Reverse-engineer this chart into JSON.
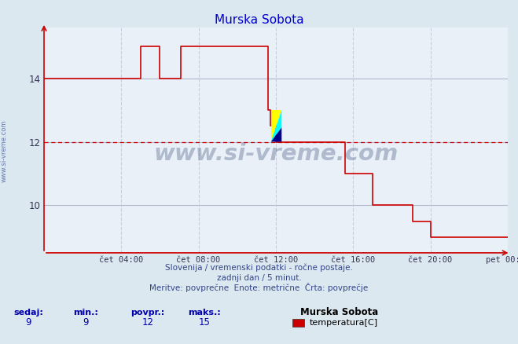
{
  "title": "Murska Sobota",
  "bg_color": "#dce8f0",
  "plot_bg_color": "#eaf0f8",
  "line_color": "#cc0000",
  "grid_color_h": "#b0b8cc",
  "grid_color_v": "#c8cce0",
  "avg_line_color": "#cc0000",
  "avg_value": 12,
  "xlabel_ticks": [
    "čet 04:00",
    "čet 08:00",
    "čet 12:00",
    "čet 16:00",
    "čet 20:00",
    "pet 00:00"
  ],
  "xlabel_tick_positions": [
    4,
    8,
    12,
    16,
    20,
    24
  ],
  "ylim": [
    8.5,
    15.6
  ],
  "xlim": [
    0,
    24
  ],
  "yticks": [
    10,
    12,
    14
  ],
  "footer_line1": "Slovenija / vremenski podatki - ročne postaje.",
  "footer_line2": "zadnji dan / 5 minut.",
  "footer_line3": "Meritve: povprečne  Enote: metrične  Črta: povprečje",
  "legend_labels": [
    "sedaj:",
    "min.:",
    "povpr.:",
    "maks.:"
  ],
  "legend_values": [
    "9",
    "9",
    "12",
    "15"
  ],
  "legend_station": "Murska Sobota",
  "legend_series": "temperatura[C]",
  "legend_color": "#cc0000",
  "watermark": "www.si-vreme.com",
  "sidebar_text": "www.si-vreme.com",
  "time_data": [
    0,
    4.9,
    5.0,
    5.5,
    6.0,
    6.5,
    7.0,
    7.1,
    7.15,
    7.5,
    8.0,
    8.5,
    9.0,
    9.5,
    10.0,
    10.5,
    11.0,
    11.5,
    11.6,
    11.7,
    12.0,
    12.1,
    12.5,
    13.0,
    13.5,
    14.0,
    14.5,
    15.0,
    15.5,
    15.6,
    16.0,
    16.5,
    17.0,
    17.5,
    18.0,
    18.5,
    19.0,
    19.1,
    19.5,
    20.0,
    24.0
  ],
  "temp_data": [
    14,
    14,
    15,
    15,
    14,
    14,
    14,
    15,
    15,
    15,
    15,
    15,
    15,
    15,
    15,
    15,
    15,
    15,
    13,
    12.5,
    12,
    12,
    12,
    12,
    12,
    12,
    12,
    12,
    12,
    11,
    11,
    11,
    10,
    10,
    10,
    10,
    10,
    9.5,
    9.5,
    9,
    9
  ]
}
